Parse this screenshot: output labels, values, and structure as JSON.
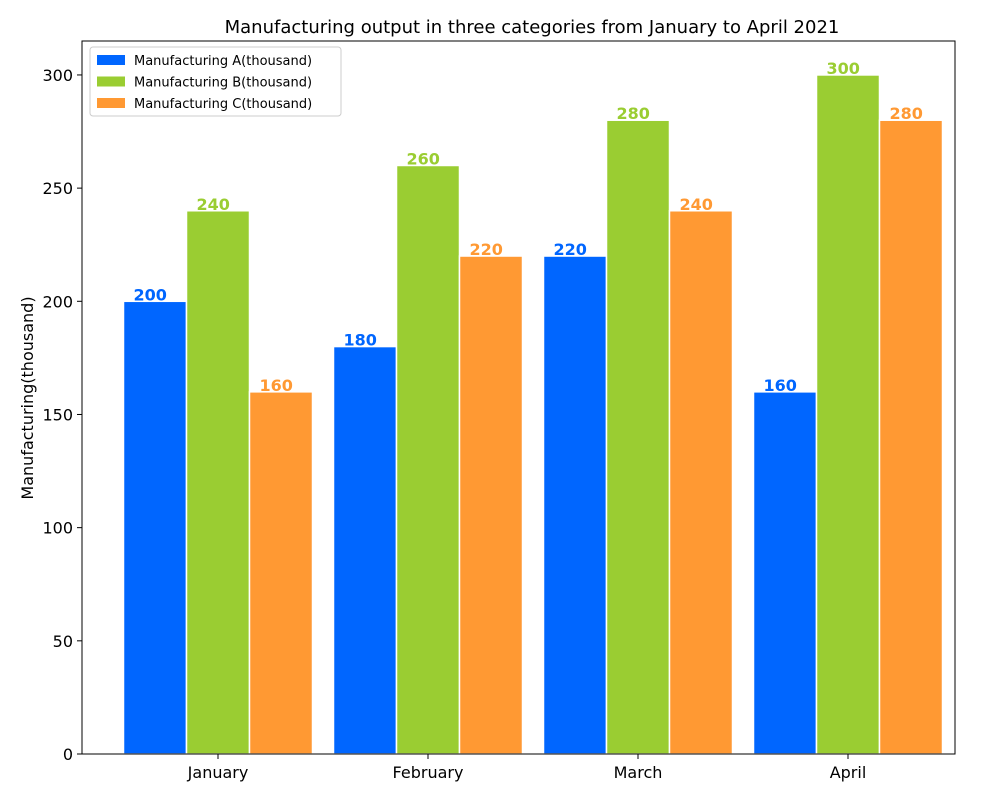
{
  "chart_data": {
    "type": "bar",
    "title": "Manufacturing output in three categories from January to April 2021",
    "xlabel": "",
    "ylabel": "Manufacturing(thousand)",
    "categories": [
      "January",
      "February",
      "March",
      "April"
    ],
    "series": [
      {
        "name": "Manufacturing A(thousand)",
        "values": [
          200,
          180,
          220,
          160
        ],
        "color": "#0066ff"
      },
      {
        "name": "Manufacturing B(thousand)",
        "values": [
          240,
          260,
          280,
          300
        ],
        "color": "#9acd32"
      },
      {
        "name": "Manufacturing C(thousand)",
        "values": [
          160,
          220,
          240,
          280
        ],
        "color": "#ff9933"
      }
    ],
    "ylim": [
      0,
      315
    ],
    "yticks": [
      0,
      50,
      100,
      150,
      200,
      250,
      300
    ],
    "grid": false,
    "legend_position": "upper-left",
    "data_labels": true
  }
}
